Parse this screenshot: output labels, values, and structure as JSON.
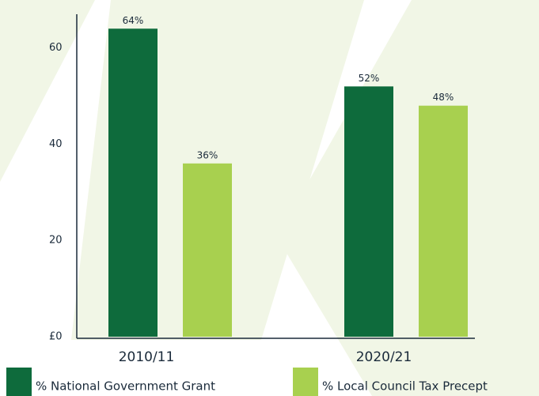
{
  "chart_data": {
    "type": "bar",
    "categories": [
      "2010/11",
      "2020/21"
    ],
    "series": [
      {
        "name": "% National Government Grant",
        "color": "#0e6b3c",
        "values": [
          64,
          52
        ],
        "value_labels": [
          "64%",
          "52%"
        ]
      },
      {
        "name": "% Local Council Tax Precept",
        "color": "#a8d04f",
        "values": [
          36,
          48
        ],
        "value_labels": [
          "36%",
          "48%"
        ]
      }
    ],
    "ylim": [
      0,
      67
    ],
    "yticks": [
      {
        "value": 0,
        "label": "£0"
      },
      20,
      40,
      60
    ]
  }
}
